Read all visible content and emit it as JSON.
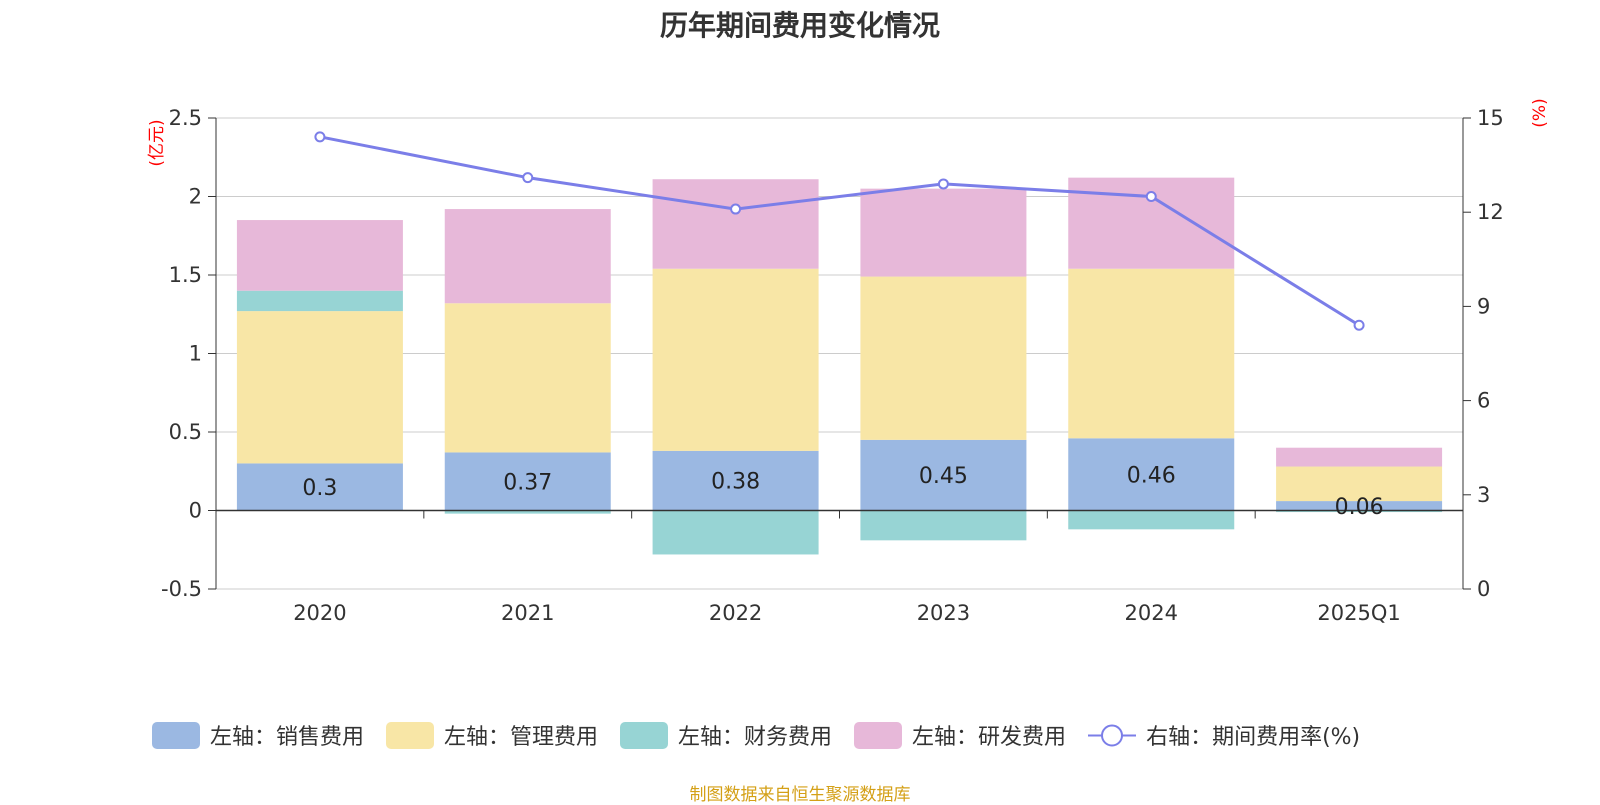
{
  "title": "历年期间费用变化情况",
  "source": "制图数据来自恒生聚源数据库",
  "colors": {
    "sales": "#9bb8e2",
    "admin": "#f8e6a6",
    "finance": "#97d4d4",
    "rd": "#e7b8d9",
    "rate_line": "#7b7ee8"
  },
  "chart_data": {
    "type": "bar",
    "stacked": true,
    "categories": [
      "2020",
      "2021",
      "2022",
      "2023",
      "2024",
      "2025Q1"
    ],
    "left_axis": {
      "unit": "(亿元)",
      "ylim": [
        -0.5,
        2.5
      ],
      "ticks": [
        "-0.5",
        "0",
        "0.5",
        "1",
        "1.5",
        "2",
        "2.5"
      ]
    },
    "right_axis": {
      "unit": "(%)",
      "ylim": [
        0,
        15
      ],
      "ticks": [
        "0",
        "3",
        "6",
        "9",
        "12",
        "15"
      ]
    },
    "grid": true,
    "legend_position": "bottom",
    "series": [
      {
        "name": "左轴：销售费用",
        "key": "sales",
        "axis": "left",
        "type": "bar",
        "values": [
          0.3,
          0.37,
          0.38,
          0.45,
          0.46,
          0.06
        ],
        "labels": [
          "0.3",
          "0.37",
          "0.38",
          "0.45",
          "0.46",
          "0.06"
        ]
      },
      {
        "name": "左轴：管理费用",
        "key": "admin",
        "axis": "left",
        "type": "bar",
        "values": [
          0.97,
          0.95,
          1.16,
          1.04,
          1.08,
          0.22
        ]
      },
      {
        "name": "左轴：财务费用",
        "key": "finance",
        "axis": "left",
        "type": "bar",
        "values": [
          0.13,
          -0.02,
          -0.28,
          -0.19,
          -0.12,
          -0.01
        ]
      },
      {
        "name": "左轴：研发费用",
        "key": "rd",
        "axis": "left",
        "type": "bar",
        "values": [
          0.45,
          0.6,
          0.57,
          0.56,
          0.58,
          0.12
        ]
      },
      {
        "name": "右轴：期间费用率(%)",
        "key": "rate",
        "axis": "right",
        "type": "line",
        "values": [
          14.4,
          13.1,
          12.1,
          12.9,
          12.5,
          8.4
        ]
      }
    ]
  }
}
